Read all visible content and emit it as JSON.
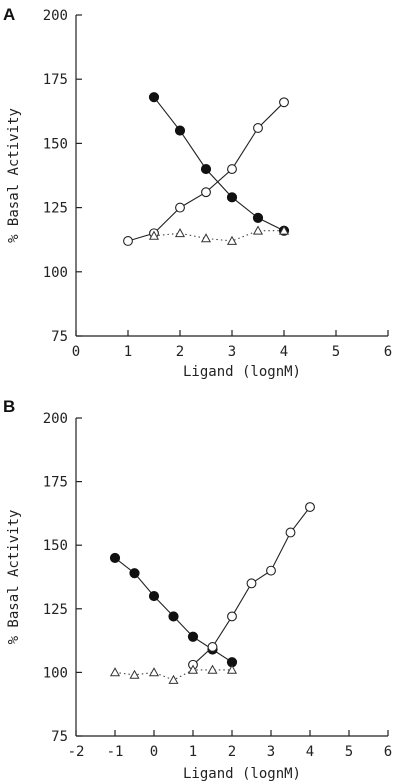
{
  "chart_data": [
    {
      "type": "line",
      "panel_label": "A",
      "xlabel": "Ligand (lognM)",
      "ylabel": "% Basal Activity",
      "xlim": [
        0,
        6
      ],
      "ylim": [
        75,
        200
      ],
      "x_ticks": [
        0,
        1,
        2,
        3,
        4,
        5,
        6
      ],
      "y_ticks": [
        75,
        100,
        125,
        150,
        175,
        200
      ],
      "grid": false,
      "series": [
        {
          "marker": "filled-circle",
          "line": "solid",
          "points": [
            [
              1.5,
              168
            ],
            [
              2.0,
              155
            ],
            [
              2.5,
              140
            ],
            [
              3.0,
              129
            ],
            [
              3.5,
              121
            ],
            [
              4.0,
              116
            ]
          ]
        },
        {
          "marker": "open-circle",
          "line": "solid",
          "points": [
            [
              1.0,
              112
            ],
            [
              1.5,
              115
            ],
            [
              2.0,
              125
            ],
            [
              2.5,
              131
            ],
            [
              3.0,
              140
            ],
            [
              3.5,
              156
            ],
            [
              4.0,
              166
            ]
          ]
        },
        {
          "marker": "open-triangle",
          "line": "dotted",
          "points": [
            [
              1.5,
              114
            ],
            [
              2.0,
              115
            ],
            [
              2.5,
              113
            ],
            [
              3.0,
              112
            ],
            [
              3.5,
              116
            ],
            [
              4.0,
              116
            ]
          ]
        }
      ]
    },
    {
      "type": "line",
      "panel_label": "B",
      "xlabel": "Ligand (lognM)",
      "ylabel": "% Basal Activity",
      "xlim": [
        -2,
        6
      ],
      "ylim": [
        75,
        200
      ],
      "x_ticks": [
        -2,
        -1,
        0,
        1,
        2,
        3,
        4,
        5,
        6
      ],
      "y_ticks": [
        75,
        100,
        125,
        150,
        175,
        200
      ],
      "grid": false,
      "series": [
        {
          "marker": "filled-circle",
          "line": "solid",
          "points": [
            [
              -1.0,
              145
            ],
            [
              -0.5,
              139
            ],
            [
              0.0,
              130
            ],
            [
              0.5,
              122
            ],
            [
              1.0,
              114
            ],
            [
              1.5,
              109
            ],
            [
              2.0,
              104
            ]
          ]
        },
        {
          "marker": "open-circle",
          "line": "solid",
          "points": [
            [
              1.0,
              103
            ],
            [
              1.5,
              110
            ],
            [
              2.0,
              122
            ],
            [
              2.5,
              135
            ],
            [
              3.0,
              140
            ],
            [
              3.5,
              155
            ],
            [
              4.0,
              165
            ]
          ]
        },
        {
          "marker": "open-triangle",
          "line": "dotted",
          "points": [
            [
              -1.0,
              100
            ],
            [
              -0.5,
              99
            ],
            [
              0.0,
              100
            ],
            [
              0.5,
              97
            ],
            [
              1.0,
              101
            ],
            [
              1.5,
              101
            ],
            [
              2.0,
              101
            ]
          ]
        }
      ]
    }
  ]
}
